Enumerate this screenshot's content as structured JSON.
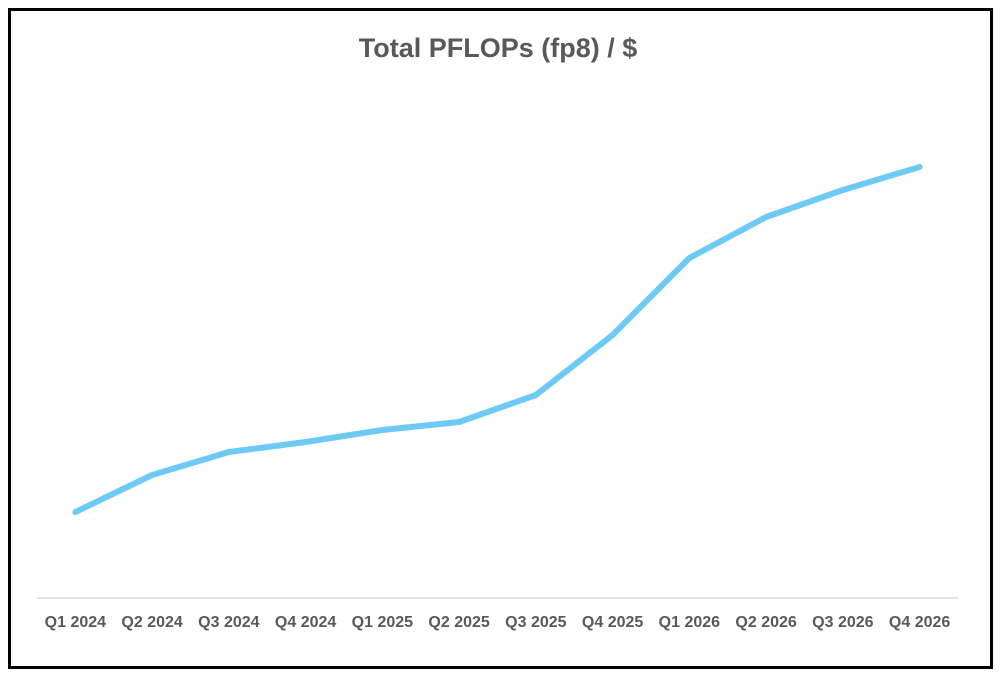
{
  "chart_data": {
    "type": "line",
    "title": "Total PFLOPs (fp8) / $",
    "categories": [
      "Q1 2024",
      "Q2 2024",
      "Q3 2024",
      "Q4 2024",
      "Q1 2025",
      "Q2 2025",
      "Q3 2025",
      "Q4 2025",
      "Q1 2026",
      "Q2 2026",
      "Q3 2026",
      "Q4 2026"
    ],
    "values": [
      17.2,
      24.6,
      29.2,
      31.2,
      33.6,
      35.2,
      40.6,
      52.6,
      68,
      76.2,
      81.6,
      86.2
    ],
    "color": "#6ccaf5",
    "ylim": [
      0,
      100
    ],
    "grid": false
  }
}
